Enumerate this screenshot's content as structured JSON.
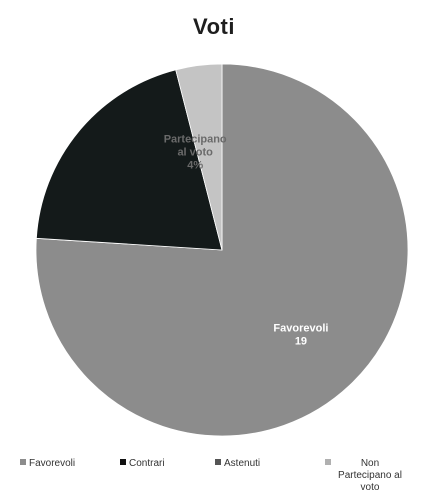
{
  "chart_data": {
    "type": "pie",
    "title": "Voti",
    "slices": [
      {
        "name": "Favorevoli",
        "value": 19,
        "color": "#8c8c8c",
        "label_lines": [
          "Favorevoli",
          "19"
        ],
        "label_color": "#ffffff"
      },
      {
        "name": "Contrari",
        "value": 0,
        "color": "#0c0c0c",
        "label_lines": [],
        "label_color": "#ffffff"
      },
      {
        "name": "Astenuti",
        "value": 5,
        "color": "#141a1a",
        "label_lines": [],
        "label_color": "#ffffff"
      },
      {
        "name": "Non Partecipano al voto",
        "value": 1,
        "color": "#c4c4c4",
        "label_lines": [
          "Partecipano",
          "al voto",
          "4%"
        ],
        "label_color": "#6a6a6a"
      }
    ],
    "legend": {
      "position": "bottom",
      "entries": [
        {
          "label": "Favorevoli",
          "color": "#8c8c8c"
        },
        {
          "label": "Contrari",
          "color": "#111111"
        },
        {
          "label": "Astenuti",
          "color": "#555555"
        },
        {
          "label": "Non Partecipano al voto",
          "color": "#b0b0b0"
        }
      ]
    }
  }
}
